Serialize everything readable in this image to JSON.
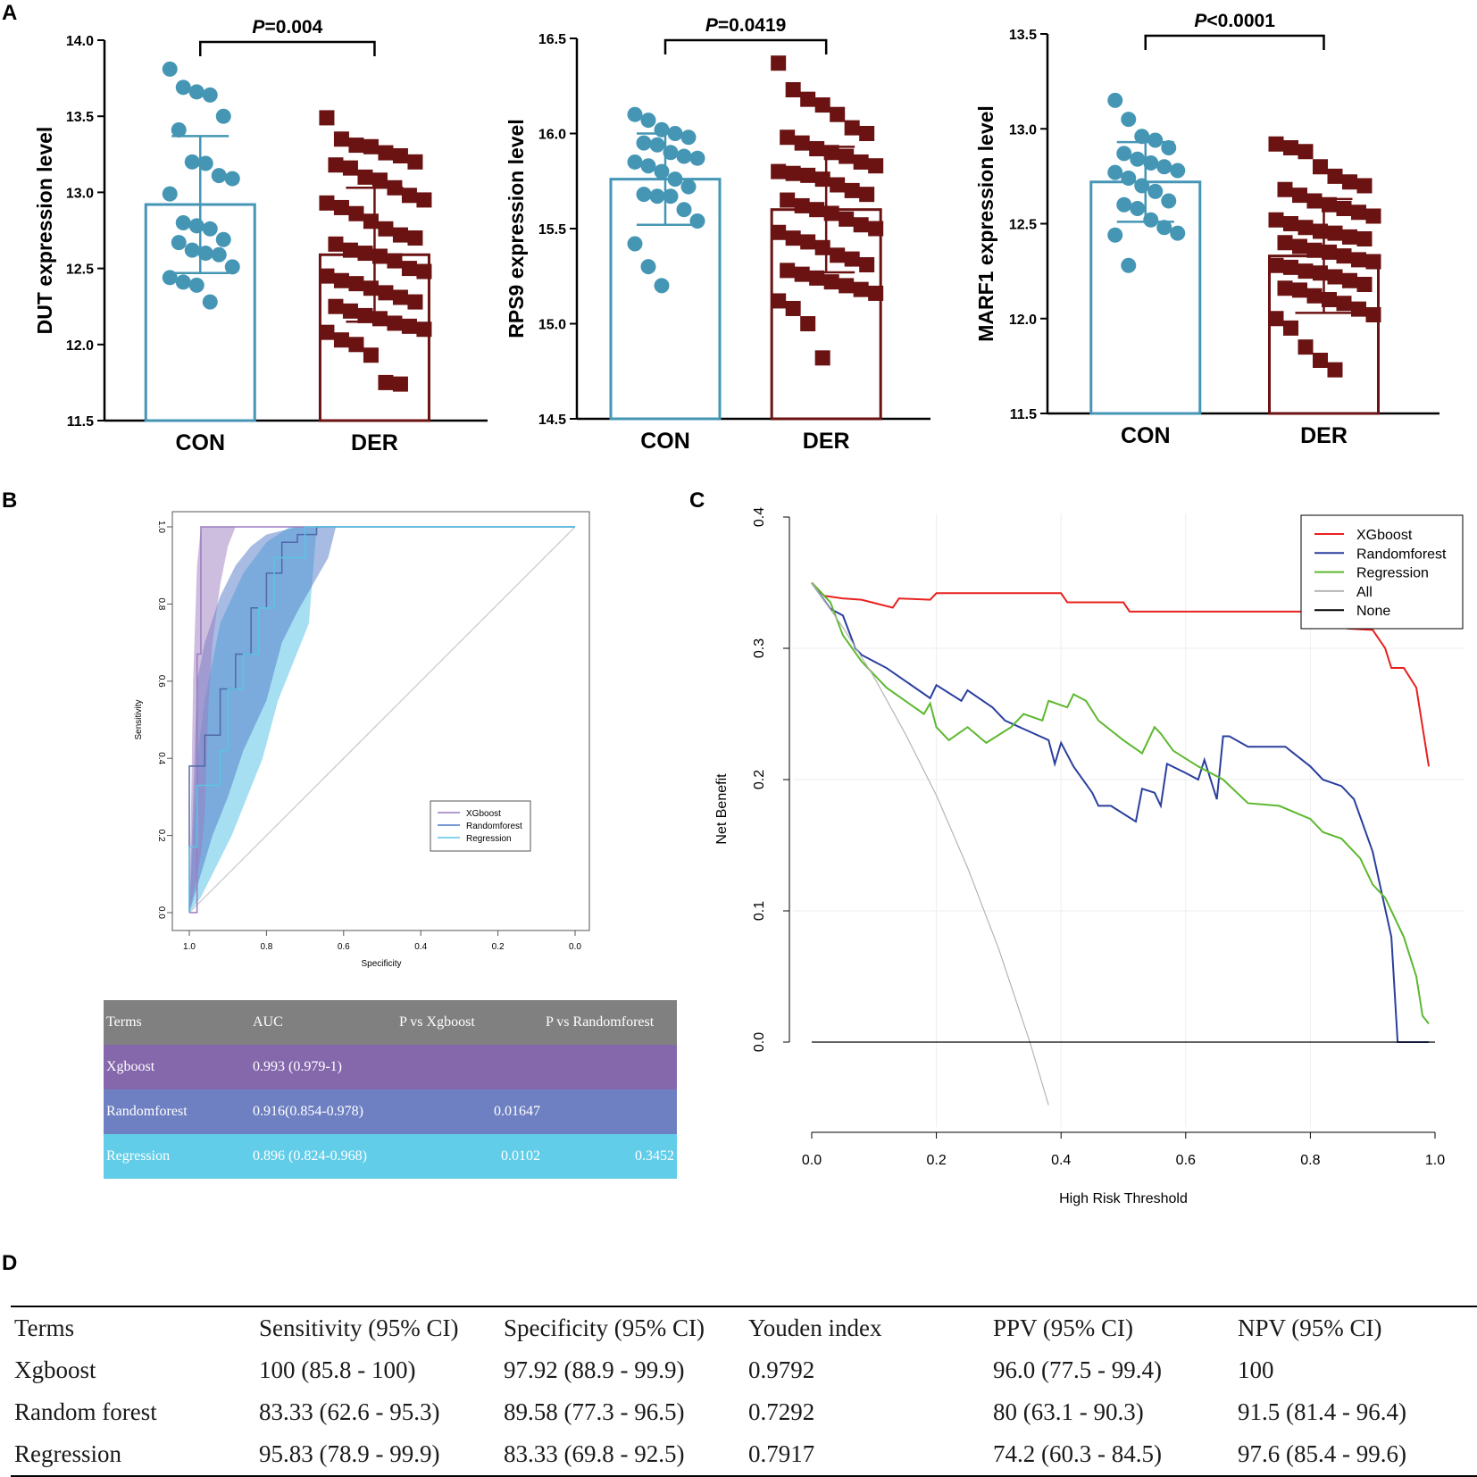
{
  "panel_labels": [
    "A",
    "B",
    "C",
    "D"
  ],
  "colors": {
    "con": "#4596b5",
    "der": "#6b1212",
    "xgboost_roc": "#9b7cc0",
    "randomforest_roc": "#4f78c8",
    "regression_roc": "#5bc4e6",
    "dca_xgboost": "#e8201f",
    "dca_randomforest": "#2a3f9e",
    "dca_regression": "#5db82f",
    "dca_all": "#b5b5b5",
    "dca_none": "#000000",
    "tbl_header": "#808080",
    "tbl_xgboost": "#8567ab",
    "tbl_randomforest": "#6e80c2",
    "tbl_regression": "#62cde8"
  },
  "chart_data": [
    {
      "type": "bar",
      "panel": "A",
      "ylabel": "DUT expression level",
      "categories": [
        "CON",
        "DER"
      ],
      "ylim": [
        11.5,
        14.0
      ],
      "yticks": [
        "11.5",
        "12.0",
        "12.5",
        "13.0",
        "13.5",
        "14.0"
      ],
      "means": [
        12.92,
        12.59
      ],
      "sd": [
        0.45,
        0.44
      ],
      "pvalue": {
        "prefix": "P",
        "text": "=0.004"
      },
      "points": [
        [
          13.81,
          13.69,
          13.66,
          13.64,
          13.5,
          13.41,
          13.2,
          13.19,
          13.11,
          13.09,
          12.99,
          12.8,
          12.78,
          12.76,
          12.69,
          12.67,
          12.62,
          12.6,
          12.59,
          12.51,
          12.44,
          12.41,
          12.39,
          12.28
        ],
        [
          13.49,
          13.35,
          13.31,
          13.3,
          13.26,
          13.24,
          13.2,
          13.18,
          13.16,
          13.1,
          13.08,
          13.03,
          12.98,
          12.95,
          12.93,
          12.9,
          12.86,
          12.81,
          12.76,
          12.72,
          12.7,
          12.66,
          12.62,
          12.6,
          12.58,
          12.55,
          12.5,
          12.48,
          12.45,
          12.42,
          12.4,
          12.37,
          12.34,
          12.31,
          12.28,
          12.25,
          12.22,
          12.19,
          12.17,
          12.14,
          12.12,
          12.1,
          12.08,
          12.03,
          12.0,
          11.93,
          11.75,
          11.74
        ]
      ]
    },
    {
      "type": "bar",
      "panel": "A",
      "ylabel": "RPS9 expression level",
      "categories": [
        "CON",
        "DER"
      ],
      "ylim": [
        14.5,
        16.5
      ],
      "yticks": [
        "14.5",
        "15.0",
        "15.5",
        "16.0",
        "16.5"
      ],
      "means": [
        15.76,
        15.6
      ],
      "sd": [
        0.24,
        0.33
      ],
      "pvalue": {
        "prefix": "P",
        "text": "=0.0419"
      },
      "points": [
        [
          16.1,
          16.07,
          16.02,
          16.0,
          15.98,
          15.95,
          15.94,
          15.9,
          15.88,
          15.87,
          15.85,
          15.83,
          15.8,
          15.76,
          15.72,
          15.68,
          15.67,
          15.67,
          15.6,
          15.54,
          15.42,
          15.3,
          15.2
        ],
        [
          16.37,
          16.23,
          16.18,
          16.15,
          16.1,
          16.03,
          16.0,
          15.98,
          15.95,
          15.92,
          15.9,
          15.88,
          15.85,
          15.83,
          15.8,
          15.79,
          15.78,
          15.76,
          15.73,
          15.7,
          15.68,
          15.65,
          15.62,
          15.6,
          15.58,
          15.55,
          15.52,
          15.5,
          15.48,
          15.45,
          15.43,
          15.4,
          15.36,
          15.34,
          15.31,
          15.28,
          15.26,
          15.24,
          15.22,
          15.2,
          15.18,
          15.16,
          15.12,
          15.08,
          15.0,
          14.82
        ]
      ]
    },
    {
      "type": "bar",
      "panel": "A",
      "ylabel": "MARF1 expression level",
      "categories": [
        "CON",
        "DER"
      ],
      "ylim": [
        11.5,
        13.5
      ],
      "yticks": [
        "11.5",
        "12.0",
        "12.5",
        "13.0",
        "13.5"
      ],
      "means": [
        12.72,
        12.33
      ],
      "sd": [
        0.21,
        0.3
      ],
      "pvalue": {
        "prefix": "P",
        "text": "<0.0001"
      },
      "points": [
        [
          13.15,
          13.05,
          12.96,
          12.94,
          12.9,
          12.87,
          12.84,
          12.82,
          12.8,
          12.78,
          12.77,
          12.74,
          12.7,
          12.67,
          12.62,
          12.6,
          12.58,
          12.52,
          12.48,
          12.45,
          12.44,
          12.28
        ],
        [
          12.92,
          12.9,
          12.88,
          12.8,
          12.75,
          12.72,
          12.7,
          12.68,
          12.65,
          12.62,
          12.6,
          12.58,
          12.56,
          12.54,
          12.52,
          12.5,
          12.48,
          12.46,
          12.45,
          12.43,
          12.42,
          12.4,
          12.38,
          12.36,
          12.35,
          12.33,
          12.31,
          12.3,
          12.28,
          12.27,
          12.25,
          12.24,
          12.22,
          12.2,
          12.18,
          12.16,
          12.15,
          12.12,
          12.1,
          12.08,
          12.05,
          12.02,
          12.0,
          11.95,
          11.85,
          11.78,
          11.73
        ]
      ]
    },
    {
      "type": "line",
      "panel": "B",
      "title": "",
      "xlabel": "Specificity",
      "ylabel": "Sensitivity",
      "xlim": [
        1.0,
        0.0
      ],
      "ylim": [
        0,
        1
      ],
      "xticks": [
        "1.0",
        "0.8",
        "0.6",
        "0.4",
        "0.2",
        "0.0"
      ],
      "yticks": [
        "0.0",
        "0.2",
        "0.4",
        "0.6",
        "0.8",
        "1.0"
      ],
      "legend": [
        "XGboost",
        "Randomforest",
        "Regression"
      ],
      "series": [
        {
          "name": "XGboost",
          "x": [
            1.0,
            0.98,
            0.98,
            0.98,
            0.97,
            0.97,
            0.0
          ],
          "y": [
            0.0,
            0.0,
            0.38,
            0.67,
            0.67,
            1.0,
            1.0
          ],
          "ci_upper_x": [
            1.0,
            0.99,
            0.98,
            0.97,
            0.95,
            0.95,
            0.0
          ],
          "ci_upper_y": [
            0.0,
            0.6,
            0.9,
            1.0,
            1.0,
            1.0,
            1.0
          ],
          "ci_lower_x": [
            1.0,
            0.97,
            0.96,
            0.95,
            0.94,
            0.92,
            0.9,
            0.88,
            0.0
          ],
          "ci_lower_y": [
            0.0,
            0.15,
            0.25,
            0.55,
            0.7,
            0.85,
            0.95,
            1.0,
            1.0
          ]
        },
        {
          "name": "Randomforest",
          "x": [
            1.0,
            1.0,
            0.96,
            0.96,
            0.92,
            0.92,
            0.88,
            0.88,
            0.84,
            0.84,
            0.8,
            0.8,
            0.76,
            0.76,
            0.72,
            0.72,
            0.67,
            0.67,
            0.0
          ],
          "y": [
            0.0,
            0.38,
            0.38,
            0.46,
            0.46,
            0.58,
            0.58,
            0.67,
            0.67,
            0.79,
            0.79,
            0.88,
            0.88,
            0.96,
            0.96,
            0.98,
            0.98,
            1.0,
            1.0
          ],
          "ci_upper_x": [
            1.0,
            0.98,
            0.96,
            0.92,
            0.88,
            0.84,
            0.8,
            0.72,
            0.0
          ],
          "ci_upper_y": [
            0.0,
            0.6,
            0.7,
            0.82,
            0.9,
            0.95,
            0.98,
            1.0,
            1.0
          ],
          "ci_lower_x": [
            1.0,
            0.94,
            0.9,
            0.86,
            0.8,
            0.76,
            0.72,
            0.68,
            0.64,
            0.62,
            0.0
          ],
          "ci_lower_y": [
            0.0,
            0.2,
            0.3,
            0.42,
            0.55,
            0.7,
            0.78,
            0.85,
            0.92,
            1.0,
            1.0
          ]
        },
        {
          "name": "Regression",
          "x": [
            1.0,
            1.0,
            0.98,
            0.98,
            0.92,
            0.92,
            0.9,
            0.9,
            0.86,
            0.86,
            0.82,
            0.82,
            0.78,
            0.78,
            0.7,
            0.7,
            0.0
          ],
          "y": [
            0.0,
            0.17,
            0.17,
            0.33,
            0.33,
            0.42,
            0.42,
            0.58,
            0.58,
            0.67,
            0.67,
            0.79,
            0.79,
            0.92,
            0.92,
            1.0,
            1.0
          ],
          "ci_upper_x": [
            1.0,
            0.98,
            0.96,
            0.92,
            0.86,
            0.8,
            0.74,
            0.0
          ],
          "ci_upper_y": [
            0.0,
            0.4,
            0.55,
            0.75,
            0.88,
            0.96,
            1.0,
            1.0
          ],
          "ci_lower_x": [
            1.0,
            0.97,
            0.93,
            0.89,
            0.85,
            0.81,
            0.77,
            0.73,
            0.69,
            0.67,
            0.0
          ],
          "ci_lower_y": [
            0.0,
            0.04,
            0.12,
            0.2,
            0.3,
            0.4,
            0.55,
            0.65,
            0.75,
            1.0,
            1.0
          ]
        }
      ]
    },
    {
      "type": "line",
      "panel": "C",
      "title": "",
      "xlabel": "High Risk Threshold",
      "ylabel": "Net Benefit",
      "xlim": [
        0,
        1
      ],
      "ylim": [
        -0.07,
        0.4
      ],
      "xticks": [
        "0.0",
        "0.2",
        "0.4",
        "0.6",
        "0.8",
        "1.0"
      ],
      "yticks": [
        "0.0",
        "0.1",
        "0.2",
        "0.3",
        "0.4"
      ],
      "legend": [
        "XGboost",
        "Randomforest",
        "Regression",
        "All",
        "None"
      ],
      "series": [
        {
          "name": "XGboost",
          "x": [
            0.0,
            0.02,
            0.05,
            0.08,
            0.13,
            0.14,
            0.19,
            0.2,
            0.4,
            0.41,
            0.5,
            0.51,
            0.7,
            0.85,
            0.86,
            0.9,
            0.92,
            0.93,
            0.95,
            0.97,
            0.98,
            0.99
          ],
          "y": [
            0.35,
            0.34,
            0.338,
            0.337,
            0.331,
            0.338,
            0.337,
            0.342,
            0.342,
            0.335,
            0.335,
            0.328,
            0.328,
            0.328,
            0.315,
            0.314,
            0.3,
            0.285,
            0.285,
            0.27,
            0.24,
            0.21
          ]
        },
        {
          "name": "Randomforest",
          "x": [
            0.0,
            0.03,
            0.05,
            0.07,
            0.08,
            0.1,
            0.12,
            0.19,
            0.2,
            0.24,
            0.25,
            0.29,
            0.31,
            0.38,
            0.39,
            0.4,
            0.42,
            0.45,
            0.46,
            0.48,
            0.52,
            0.53,
            0.55,
            0.56,
            0.57,
            0.6,
            0.62,
            0.63,
            0.65,
            0.66,
            0.67,
            0.7,
            0.76,
            0.8,
            0.82,
            0.85,
            0.87,
            0.9,
            0.93,
            0.94,
            0.99
          ],
          "y": [
            0.35,
            0.33,
            0.325,
            0.3,
            0.295,
            0.29,
            0.285,
            0.262,
            0.272,
            0.26,
            0.268,
            0.255,
            0.245,
            0.23,
            0.212,
            0.228,
            0.21,
            0.19,
            0.18,
            0.18,
            0.168,
            0.193,
            0.19,
            0.18,
            0.212,
            0.205,
            0.2,
            0.215,
            0.185,
            0.233,
            0.233,
            0.225,
            0.225,
            0.21,
            0.2,
            0.195,
            0.185,
            0.145,
            0.08,
            0.0,
            0.0
          ]
        },
        {
          "name": "Regression",
          "x": [
            0.0,
            0.03,
            0.05,
            0.08,
            0.1,
            0.12,
            0.15,
            0.18,
            0.19,
            0.2,
            0.22,
            0.25,
            0.28,
            0.32,
            0.34,
            0.37,
            0.38,
            0.41,
            0.42,
            0.44,
            0.46,
            0.5,
            0.53,
            0.55,
            0.56,
            0.58,
            0.62,
            0.66,
            0.7,
            0.75,
            0.8,
            0.82,
            0.85,
            0.88,
            0.9,
            0.92,
            0.95,
            0.97,
            0.98,
            0.99
          ],
          "y": [
            0.35,
            0.335,
            0.31,
            0.29,
            0.28,
            0.27,
            0.26,
            0.25,
            0.258,
            0.24,
            0.23,
            0.24,
            0.228,
            0.24,
            0.25,
            0.245,
            0.26,
            0.255,
            0.265,
            0.26,
            0.245,
            0.23,
            0.22,
            0.24,
            0.235,
            0.222,
            0.21,
            0.2,
            0.182,
            0.18,
            0.17,
            0.16,
            0.155,
            0.14,
            0.12,
            0.11,
            0.08,
            0.05,
            0.02,
            0.014
          ]
        },
        {
          "name": "All",
          "x": [
            0.0,
            0.05,
            0.1,
            0.15,
            0.2,
            0.25,
            0.3,
            0.35,
            0.38
          ],
          "y": [
            0.35,
            0.316,
            0.278,
            0.235,
            0.188,
            0.133,
            0.071,
            0.0,
            -0.048
          ]
        },
        {
          "name": "None",
          "x": [
            0.0,
            1.0
          ],
          "y": [
            0.0,
            0.0
          ]
        }
      ]
    }
  ],
  "auc_table": {
    "headers": [
      "Terms",
      "AUC",
      "P vs Xgboost",
      "P vs Randomforest"
    ],
    "rows": [
      {
        "term": "Xgboost",
        "auc": "0.993 (0.979-1)",
        "p_xgb": "",
        "p_rf": ""
      },
      {
        "term": "Randomforest",
        "auc": "0.916(0.854-0.978)",
        "p_xgb": "0.01647",
        "p_rf": ""
      },
      {
        "term": "Regression",
        "auc": "0.896 (0.824-0.968)",
        "p_xgb": "0.0102",
        "p_rf": "0.3452"
      }
    ]
  },
  "metrics_table": {
    "headers": [
      "Terms",
      "Sensitivity (95% CI)",
      "Specificity (95% CI)",
      "Youden index",
      "PPV (95% CI)",
      "NPV (95% CI)"
    ],
    "rows": [
      [
        "Xgboost",
        "100 (85.8 - 100)",
        "97.92 (88.9 - 99.9)",
        "0.9792",
        "96.0 (77.5 - 99.4)",
        "100"
      ],
      [
        "Random forest",
        "83.33 (62.6 - 95.3)",
        "89.58 (77.3 - 96.5)",
        "0.7292",
        "80 (63.1 - 90.3)",
        "91.5 (81.4 - 96.4)"
      ],
      [
        "Regression",
        "95.83 (78.9 - 99.9)",
        "83.33 (69.8 - 92.5)",
        "0.7917",
        "74.2 (60.3 - 84.5)",
        "97.6 (85.4 - 99.6)"
      ]
    ]
  }
}
